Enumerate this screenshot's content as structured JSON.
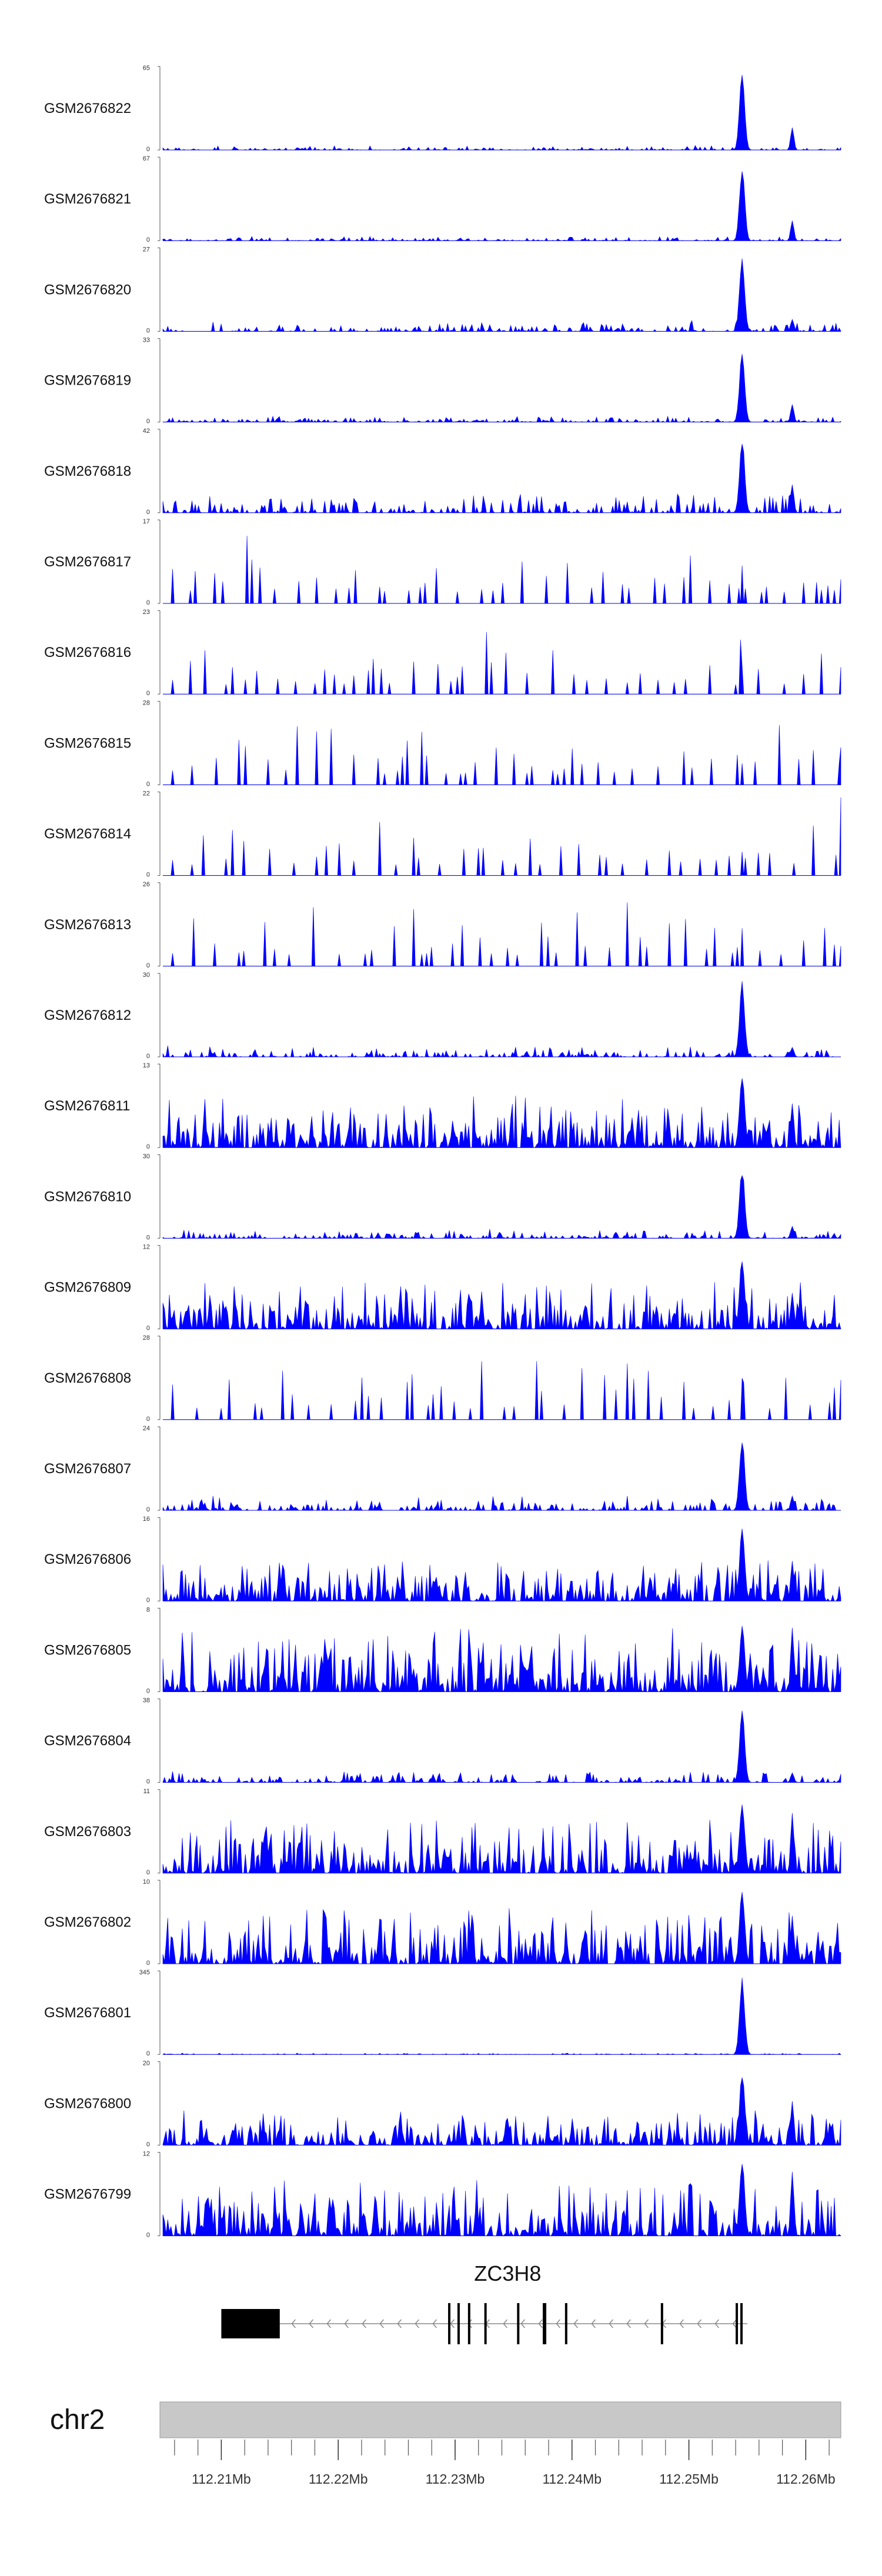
{
  "chart_data": {
    "type": "area",
    "title": "",
    "chromosome": "chr2",
    "region": {
      "start": 112205000,
      "end": 112263000
    },
    "x_tick_labels": [
      "112.21Mb",
      "112.22Mb",
      "112.23Mb",
      "112.24Mb",
      "112.25Mb",
      "112.26Mb"
    ],
    "x_tick_values": [
      112210000,
      112220000,
      112230000,
      112240000,
      112250000,
      112260000
    ],
    "minor_tick_step": 2000,
    "fill_color": "#0000ff",
    "peak_locus": 112254500,
    "gene": {
      "name": "ZC3H8",
      "strand": "-",
      "start": 112210000,
      "end": 112255000,
      "exons": [
        {
          "start": 112210000,
          "end": 112215000,
          "thick": true
        },
        {
          "start": 112229400,
          "end": 112229600
        },
        {
          "start": 112230200,
          "end": 112230400
        },
        {
          "start": 112231100,
          "end": 112231300
        },
        {
          "start": 112232500,
          "end": 112232700
        },
        {
          "start": 112235300,
          "end": 112235500
        },
        {
          "start": 112237500,
          "end": 112237800
        },
        {
          "start": 112239400,
          "end": 112239600
        },
        {
          "start": 112247600,
          "end": 112247800
        },
        {
          "start": 112254000,
          "end": 112254200
        },
        {
          "start": 112254400,
          "end": 112254600
        }
      ]
    },
    "series": [
      {
        "name": "GSM2676822",
        "ymax": "65",
        "ymin": "0",
        "style": "peak",
        "peak": 1.0,
        "second": 0.28,
        "noise": 0.06,
        "seed": 101
      },
      {
        "name": "GSM2676821",
        "ymax": "67",
        "ymin": "0",
        "style": "peak",
        "peak": 0.95,
        "second": 0.25,
        "noise": 0.06,
        "seed": 102
      },
      {
        "name": "GSM2676820",
        "ymax": "27",
        "ymin": "0",
        "style": "peak",
        "peak": 0.95,
        "second": 0.15,
        "noise": 0.14,
        "seed": 103
      },
      {
        "name": "GSM2676819",
        "ymax": "33",
        "ymin": "0",
        "style": "peak",
        "peak": 0.92,
        "second": 0.22,
        "noise": 0.08,
        "seed": 104
      },
      {
        "name": "GSM2676818",
        "ymax": "42",
        "ymin": "0",
        "style": "mixed",
        "peak": 0.95,
        "second": 0.35,
        "noise": 0.25,
        "seed": 105
      },
      {
        "name": "GSM2676817",
        "ymax": "17",
        "ymin": "0",
        "style": "sparse",
        "peak": 0.6,
        "second": 0.0,
        "noise": 0.95,
        "seed": 106
      },
      {
        "name": "GSM2676816",
        "ymax": "23",
        "ymin": "0",
        "style": "sparse",
        "peak": 0.55,
        "second": 0.0,
        "noise": 0.8,
        "seed": 107
      },
      {
        "name": "GSM2676815",
        "ymax": "28",
        "ymin": "0",
        "style": "sparse",
        "peak": 0.4,
        "second": 0.0,
        "noise": 0.9,
        "seed": 108
      },
      {
        "name": "GSM2676814",
        "ymax": "22",
        "ymin": "0",
        "style": "sparse",
        "peak": 0.5,
        "second": 0.0,
        "noise": 0.9,
        "seed": 109
      },
      {
        "name": "GSM2676813",
        "ymax": "26",
        "ymin": "0",
        "style": "sparse",
        "peak": 0.6,
        "second": 0.0,
        "noise": 0.9,
        "seed": 110
      },
      {
        "name": "GSM2676812",
        "ymax": "30",
        "ymin": "0",
        "style": "peak",
        "peak": 0.95,
        "second": 0.12,
        "noise": 0.15,
        "seed": 111
      },
      {
        "name": "GSM2676811",
        "ymax": "13",
        "ymin": "0",
        "style": "dense",
        "peak": 0.95,
        "second": 0.55,
        "noise": 0.65,
        "seed": 112
      },
      {
        "name": "GSM2676810",
        "ymax": "30",
        "ymin": "0",
        "style": "peak",
        "peak": 0.92,
        "second": 0.15,
        "noise": 0.12,
        "seed": 113
      },
      {
        "name": "GSM2676809",
        "ymax": "12",
        "ymin": "0",
        "style": "dense",
        "peak": 0.95,
        "second": 0.45,
        "noise": 0.6,
        "seed": 114
      },
      {
        "name": "GSM2676808",
        "ymax": "28",
        "ymin": "0",
        "style": "sparse",
        "peak": 0.6,
        "second": 0.0,
        "noise": 0.9,
        "seed": 115
      },
      {
        "name": "GSM2676807",
        "ymax": "24",
        "ymin": "0",
        "style": "peak",
        "peak": 0.95,
        "second": 0.18,
        "noise": 0.2,
        "seed": 116
      },
      {
        "name": "GSM2676806",
        "ymax": "16",
        "ymin": "0",
        "style": "dense",
        "peak": 0.95,
        "second": 0.5,
        "noise": 0.55,
        "seed": 117
      },
      {
        "name": "GSM2676805",
        "ymax": "8",
        "ymin": "0",
        "style": "dense",
        "peak": 0.85,
        "second": 0.8,
        "noise": 0.8,
        "seed": 118
      },
      {
        "name": "GSM2676804",
        "ymax": "38",
        "ymin": "0",
        "style": "peak",
        "peak": 0.95,
        "second": 0.12,
        "noise": 0.15,
        "seed": 119
      },
      {
        "name": "GSM2676803",
        "ymax": "11",
        "ymin": "0",
        "style": "dense",
        "peak": 0.95,
        "second": 0.75,
        "noise": 0.7,
        "seed": 120
      },
      {
        "name": "GSM2676802",
        "ymax": "10",
        "ymin": "0",
        "style": "dense",
        "peak": 0.95,
        "second": 0.6,
        "noise": 0.7,
        "seed": 121
      },
      {
        "name": "GSM2676801",
        "ymax": "345",
        "ymin": "0",
        "style": "peak",
        "peak": 1.0,
        "second": 0.0,
        "noise": 0.02,
        "seed": 122
      },
      {
        "name": "GSM2676800",
        "ymax": "20",
        "ymin": "0",
        "style": "dense",
        "peak": 0.95,
        "second": 0.55,
        "noise": 0.45,
        "seed": 123
      },
      {
        "name": "GSM2676799",
        "ymax": "12",
        "ymin": "0",
        "style": "dense",
        "peak": 0.95,
        "second": 0.8,
        "noise": 0.7,
        "seed": 124
      }
    ]
  }
}
